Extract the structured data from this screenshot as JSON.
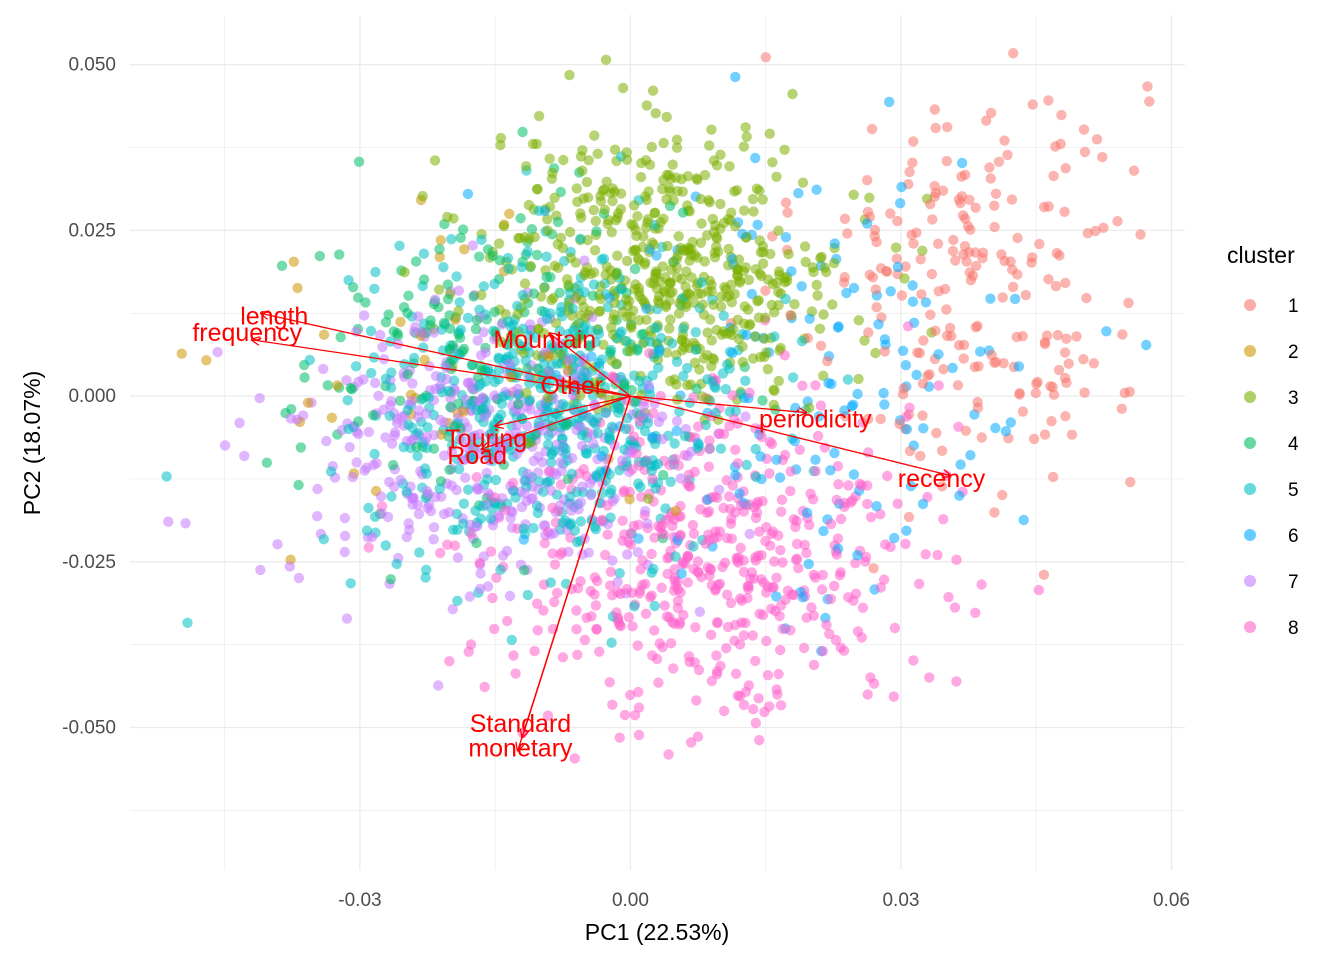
{
  "chart_data": {
    "type": "scatter",
    "subtype": "pca-biplot",
    "title": "",
    "xlabel": "PC1 (22.53%)",
    "ylabel": "PC2 (18.07%)",
    "xlim": [
      -0.0555,
      0.0615
    ],
    "ylim": [
      -0.0715,
      0.0575
    ],
    "xticks": [
      -0.03,
      0.0,
      0.03,
      0.06
    ],
    "xtick_labels": [
      "-0.03",
      "0.00",
      "0.03",
      "0.06"
    ],
    "yticks": [
      0.05,
      0.025,
      0.0,
      -0.025,
      -0.05
    ],
    "ytick_labels": [
      "0.050",
      "0.025",
      "0.000",
      "-0.025",
      "-0.050"
    ],
    "grid": true,
    "background": "#ffffff",
    "grid_color": "#ebebeb",
    "legend": {
      "title": "cluster",
      "position": "right"
    },
    "point_alpha": 0.55,
    "series": [
      {
        "name": "1",
        "color": "#F8766D",
        "center": [
          0.038,
          0.018
        ],
        "spread": [
          0.0095,
          0.017
        ],
        "count": 230
      },
      {
        "name": "2",
        "color": "#CD9600",
        "center": [
          -0.02,
          0.005
        ],
        "spread": [
          0.012,
          0.013
        ],
        "count": 40
      },
      {
        "name": "3",
        "color": "#7CAE00",
        "center": [
          0.004,
          0.019
        ],
        "spread": [
          0.01,
          0.0105
        ],
        "count": 560
      },
      {
        "name": "4",
        "color": "#00BE67",
        "center": [
          -0.016,
          0.006
        ],
        "spread": [
          0.011,
          0.012
        ],
        "count": 190
      },
      {
        "name": "5",
        "color": "#00BFC4",
        "center": [
          -0.008,
          -0.002
        ],
        "spread": [
          0.0105,
          0.0115
        ],
        "count": 560
      },
      {
        "name": "6",
        "color": "#00A9FF",
        "center": [
          0.02,
          0.002
        ],
        "spread": [
          0.014,
          0.018
        ],
        "count": 150
      },
      {
        "name": "7",
        "color": "#C77CFF",
        "center": [
          -0.016,
          -0.008
        ],
        "spread": [
          0.011,
          0.011
        ],
        "count": 420
      },
      {
        "name": "8",
        "color": "#FF61CC",
        "center": [
          0.009,
          -0.024
        ],
        "spread": [
          0.0115,
          0.0125
        ],
        "count": 520
      }
    ],
    "loadings": {
      "origin": [
        0.0,
        0.0
      ],
      "color": "#ff0000",
      "vectors": [
        {
          "label": "length",
          "end": [
            -0.041,
            0.0125
          ],
          "label_at": [
            -0.0395,
            0.012
          ]
        },
        {
          "label": "frequency",
          "end": [
            -0.042,
            0.0085
          ],
          "label_at": [
            -0.0425,
            0.0095
          ]
        },
        {
          "label": "Mountain",
          "end": [
            -0.009,
            0.0095
          ],
          "label_at": [
            -0.0095,
            0.0085
          ]
        },
        {
          "label": "Other",
          "end": [
            -0.007,
            0.0015
          ],
          "label_at": [
            -0.0065,
            0.0015
          ]
        },
        {
          "label": "periodicity",
          "end": [
            0.0195,
            -0.0025
          ],
          "label_at": [
            0.0205,
            -0.0035
          ]
        },
        {
          "label": "recency",
          "end": [
            0.0355,
            -0.012
          ],
          "label_at": [
            0.0345,
            -0.0125
          ]
        },
        {
          "label": "Touring",
          "end": [
            -0.015,
            -0.0045
          ],
          "label_at": [
            -0.016,
            -0.0065
          ]
        },
        {
          "label": "Road",
          "end": [
            -0.0165,
            -0.008
          ],
          "label_at": [
            -0.017,
            -0.009
          ]
        },
        {
          "label": "Standard",
          "end": [
            -0.012,
            -0.0515
          ],
          "label_at": [
            -0.0122,
            -0.0495
          ]
        },
        {
          "label": "monetary",
          "end": [
            -0.0125,
            -0.0535
          ],
          "label_at": [
            -0.0122,
            -0.0532
          ]
        }
      ]
    }
  }
}
